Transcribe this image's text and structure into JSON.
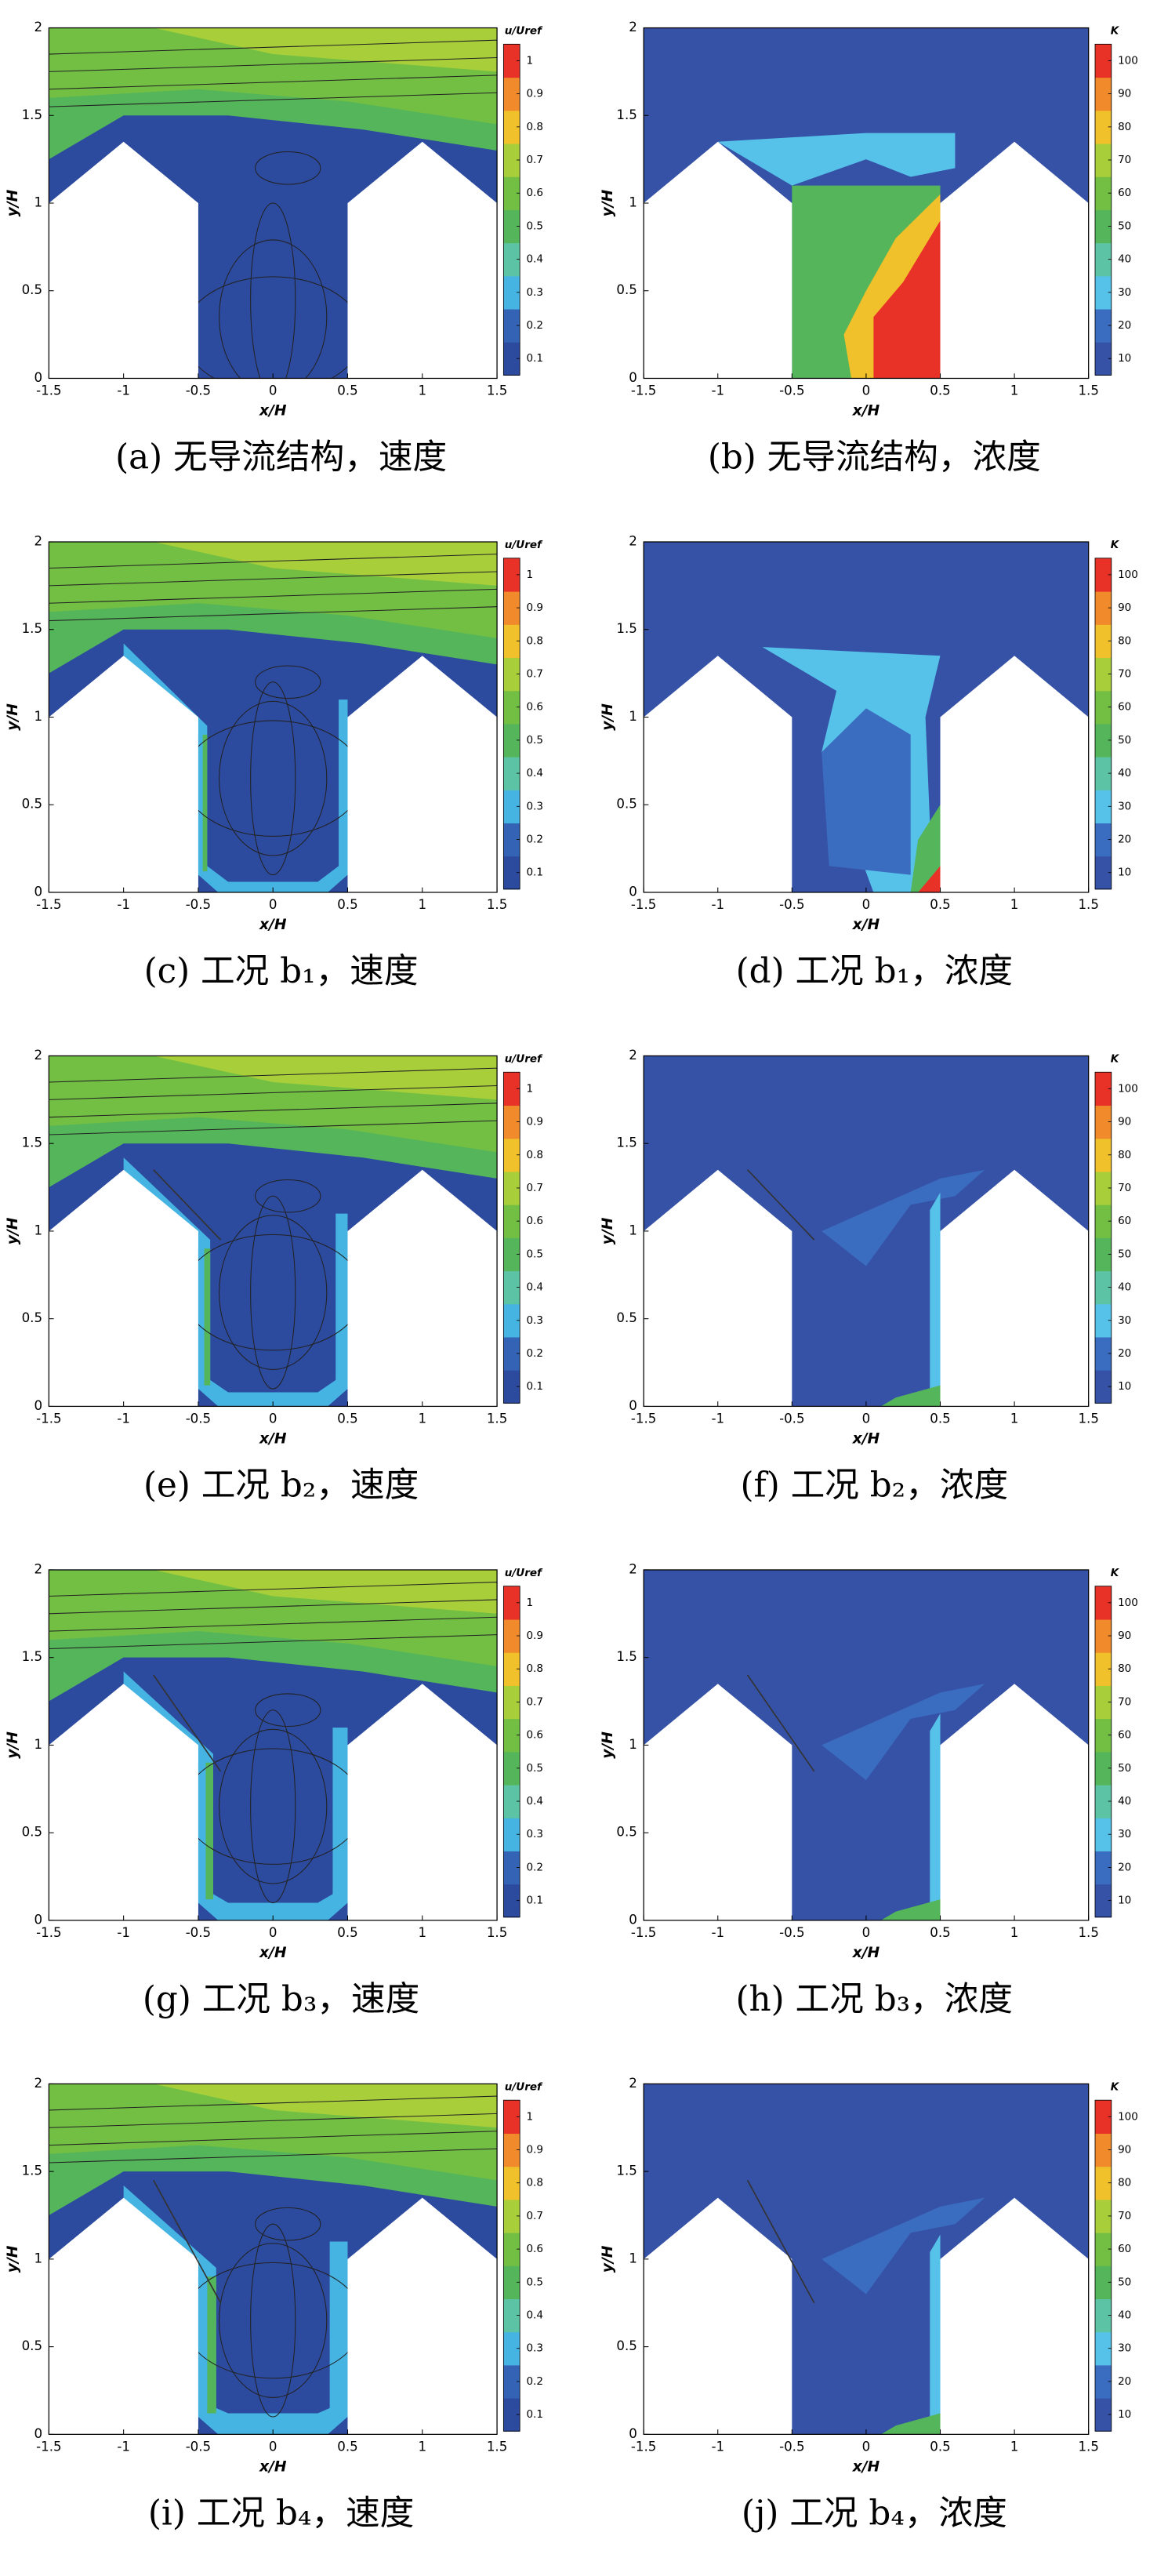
{
  "chart_data": [
    {
      "type": "contour",
      "caption": "(a) 无导流结构，速度",
      "xlabel": "x/H",
      "ylabel": "y/H",
      "xlim": [
        -1.5,
        1.5
      ],
      "ylim": [
        0,
        2
      ],
      "xticks": [
        -1.5,
        -1,
        -0.5,
        0,
        0.5,
        1,
        1.5
      ],
      "yticks": [
        0,
        0.5,
        1,
        1.5,
        2
      ],
      "colorbar_title": "u/Uref",
      "clim": [
        0.05,
        1.05
      ],
      "colorbar_ticks": [
        0.1,
        0.2,
        0.3,
        0.4,
        0.5,
        0.6,
        0.7,
        0.8,
        0.9,
        1
      ],
      "colorbar_colors": [
        "#2c4a9e",
        "#3462b4",
        "#45b4e2",
        "#5cc4a4",
        "#55b55a",
        "#72bf44",
        "#a8cf3a",
        "#f0c12a",
        "#f08a2a",
        "#e83228"
      ]
    },
    {
      "type": "contour",
      "caption": "(b) 无导流结构，浓度",
      "xlabel": "x/H",
      "ylabel": "y/H",
      "xlim": [
        -1.5,
        1.5
      ],
      "ylim": [
        0,
        2
      ],
      "xticks": [
        -1.5,
        -1,
        -0.5,
        0,
        0.5,
        1,
        1.5
      ],
      "yticks": [
        0,
        0.5,
        1,
        1.5,
        2
      ],
      "colorbar_title": "K",
      "clim": [
        5,
        105
      ],
      "colorbar_ticks": [
        10,
        20,
        30,
        40,
        50,
        60,
        70,
        80,
        90,
        100
      ],
      "colorbar_colors": [
        "#3652a6",
        "#3a6cc0",
        "#56c2ea",
        "#5cc4a4",
        "#55b55a",
        "#72bf44",
        "#a8cf3a",
        "#f0c12a",
        "#f08a2a",
        "#e83228"
      ]
    },
    {
      "type": "contour",
      "caption": "(c) 工况 b₁，速度",
      "xlabel": "x/H",
      "ylabel": "y/H",
      "xlim": [
        -1.5,
        1.5
      ],
      "ylim": [
        0,
        2
      ],
      "xticks": [
        -1.5,
        -1,
        -0.5,
        0,
        0.5,
        1,
        1.5
      ],
      "yticks": [
        0,
        0.5,
        1,
        1.5,
        2
      ],
      "colorbar_title": "u/Uref",
      "clim": [
        0.05,
        1.05
      ],
      "colorbar_ticks": [
        0.1,
        0.2,
        0.3,
        0.4,
        0.5,
        0.6,
        0.7,
        0.8,
        0.9,
        1
      ],
      "colorbar_colors": [
        "#2c4a9e",
        "#3462b4",
        "#45b4e2",
        "#5cc4a4",
        "#55b55a",
        "#72bf44",
        "#a8cf3a",
        "#f0c12a",
        "#f08a2a",
        "#e83228"
      ]
    },
    {
      "type": "contour",
      "caption": "(d) 工况 b₁，浓度",
      "xlabel": "x/H",
      "ylabel": "y/H",
      "xlim": [
        -1.5,
        1.5
      ],
      "ylim": [
        0,
        2
      ],
      "xticks": [
        -1.5,
        -1,
        -0.5,
        0,
        0.5,
        1,
        1.5
      ],
      "yticks": [
        0,
        0.5,
        1,
        1.5,
        2
      ],
      "colorbar_title": "K",
      "clim": [
        5,
        105
      ],
      "colorbar_ticks": [
        10,
        20,
        30,
        40,
        50,
        60,
        70,
        80,
        90,
        100
      ],
      "colorbar_colors": [
        "#3652a6",
        "#3a6cc0",
        "#56c2ea",
        "#5cc4a4",
        "#55b55a",
        "#72bf44",
        "#a8cf3a",
        "#f0c12a",
        "#f08a2a",
        "#e83228"
      ]
    },
    {
      "type": "contour",
      "caption": "(e) 工况 b₂，速度",
      "xlabel": "x/H",
      "ylabel": "y/H",
      "xlim": [
        -1.5,
        1.5
      ],
      "ylim": [
        0,
        2
      ],
      "xticks": [
        -1.5,
        -1,
        -0.5,
        0,
        0.5,
        1,
        1.5
      ],
      "yticks": [
        0,
        0.5,
        1,
        1.5,
        2
      ],
      "colorbar_title": "u/Uref",
      "clim": [
        0.05,
        1.05
      ],
      "colorbar_ticks": [
        0.1,
        0.2,
        0.3,
        0.4,
        0.5,
        0.6,
        0.7,
        0.8,
        0.9,
        1
      ],
      "colorbar_colors": [
        "#2c4a9e",
        "#3462b4",
        "#45b4e2",
        "#5cc4a4",
        "#55b55a",
        "#72bf44",
        "#a8cf3a",
        "#f0c12a",
        "#f08a2a",
        "#e83228"
      ]
    },
    {
      "type": "contour",
      "caption": "(f) 工况 b₂，浓度",
      "xlabel": "x/H",
      "ylabel": "y/H",
      "xlim": [
        -1.5,
        1.5
      ],
      "ylim": [
        0,
        2
      ],
      "xticks": [
        -1.5,
        -1,
        -0.5,
        0,
        0.5,
        1,
        1.5
      ],
      "yticks": [
        0,
        0.5,
        1,
        1.5,
        2
      ],
      "colorbar_title": "K",
      "clim": [
        5,
        105
      ],
      "colorbar_ticks": [
        10,
        20,
        30,
        40,
        50,
        60,
        70,
        80,
        90,
        100
      ],
      "colorbar_colors": [
        "#3652a6",
        "#3a6cc0",
        "#56c2ea",
        "#5cc4a4",
        "#55b55a",
        "#72bf44",
        "#a8cf3a",
        "#f0c12a",
        "#f08a2a",
        "#e83228"
      ]
    },
    {
      "type": "contour",
      "caption": "(g) 工况 b₃，速度",
      "xlabel": "x/H",
      "ylabel": "y/H",
      "xlim": [
        -1.5,
        1.5
      ],
      "ylim": [
        0,
        2
      ],
      "xticks": [
        -1.5,
        -1,
        -0.5,
        0,
        0.5,
        1,
        1.5
      ],
      "yticks": [
        0,
        0.5,
        1,
        1.5,
        2
      ],
      "colorbar_title": "u/Uref",
      "clim": [
        0.05,
        1.05
      ],
      "colorbar_ticks": [
        0.1,
        0.2,
        0.3,
        0.4,
        0.5,
        0.6,
        0.7,
        0.8,
        0.9,
        1
      ],
      "colorbar_colors": [
        "#2c4a9e",
        "#3462b4",
        "#45b4e2",
        "#5cc4a4",
        "#55b55a",
        "#72bf44",
        "#a8cf3a",
        "#f0c12a",
        "#f08a2a",
        "#e83228"
      ]
    },
    {
      "type": "contour",
      "caption": "(h) 工况 b₃，浓度",
      "xlabel": "x/H",
      "ylabel": "y/H",
      "xlim": [
        -1.5,
        1.5
      ],
      "ylim": [
        0,
        2
      ],
      "xticks": [
        -1.5,
        -1,
        -0.5,
        0,
        0.5,
        1,
        1.5
      ],
      "yticks": [
        0,
        0.5,
        1,
        1.5,
        2
      ],
      "colorbar_title": "K",
      "clim": [
        5,
        105
      ],
      "colorbar_ticks": [
        10,
        20,
        30,
        40,
        50,
        60,
        70,
        80,
        90,
        100
      ],
      "colorbar_colors": [
        "#3652a6",
        "#3a6cc0",
        "#56c2ea",
        "#5cc4a4",
        "#55b55a",
        "#72bf44",
        "#a8cf3a",
        "#f0c12a",
        "#f08a2a",
        "#e83228"
      ]
    },
    {
      "type": "contour",
      "caption": "(i) 工况 b₄，速度",
      "xlabel": "x/H",
      "ylabel": "y/H",
      "xlim": [
        -1.5,
        1.5
      ],
      "ylim": [
        0,
        2
      ],
      "xticks": [
        -1.5,
        -1,
        -0.5,
        0,
        0.5,
        1,
        1.5
      ],
      "yticks": [
        0,
        0.5,
        1,
        1.5,
        2
      ],
      "colorbar_title": "u/Uref",
      "clim": [
        0.05,
        1.05
      ],
      "colorbar_ticks": [
        0.1,
        0.2,
        0.3,
        0.4,
        0.5,
        0.6,
        0.7,
        0.8,
        0.9,
        1
      ],
      "colorbar_colors": [
        "#2c4a9e",
        "#3462b4",
        "#45b4e2",
        "#5cc4a4",
        "#55b55a",
        "#72bf44",
        "#a8cf3a",
        "#f0c12a",
        "#f08a2a",
        "#e83228"
      ]
    },
    {
      "type": "contour",
      "caption": "(j) 工况 b₄，浓度",
      "xlabel": "x/H",
      "ylabel": "y/H",
      "xlim": [
        -1.5,
        1.5
      ],
      "ylim": [
        0,
        2
      ],
      "xticks": [
        -1.5,
        -1,
        -0.5,
        0,
        0.5,
        1,
        1.5
      ],
      "yticks": [
        0,
        0.5,
        1,
        1.5,
        2
      ],
      "colorbar_title": "K",
      "clim": [
        5,
        105
      ],
      "colorbar_ticks": [
        10,
        20,
        30,
        40,
        50,
        60,
        70,
        80,
        90,
        100
      ],
      "colorbar_colors": [
        "#3652a6",
        "#3a6cc0",
        "#56c2ea",
        "#5cc4a4",
        "#55b55a",
        "#72bf44",
        "#a8cf3a",
        "#f0c12a",
        "#f08a2a",
        "#e83228"
      ]
    }
  ]
}
